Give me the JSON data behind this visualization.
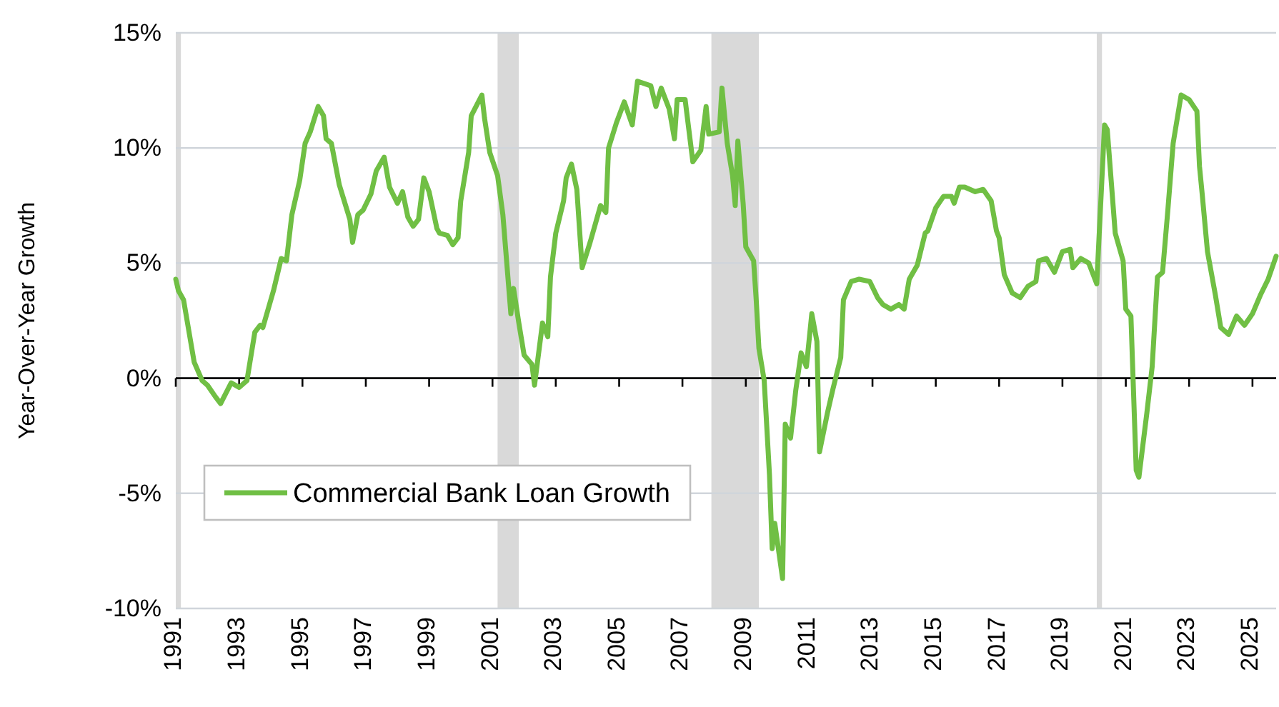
{
  "chart_data": {
    "type": "line",
    "ylabel": "Year-Over-Year Growth",
    "x": [
      "1991-01",
      "1991-02",
      "1991-04",
      "1991-08",
      "1991-11",
      "1992-01",
      "1992-04",
      "1992-06",
      "1992-10",
      "1993-01",
      "1993-04",
      "1993-07",
      "1993-09",
      "1993-10",
      "1994-02",
      "1994-05",
      "1994-07",
      "1994-09",
      "1994-12",
      "1995-02",
      "1995-04",
      "1995-07",
      "1995-09",
      "1995-10",
      "1995-12",
      "1996-03",
      "1996-07",
      "1996-08",
      "1996-10",
      "1996-12",
      "1997-03",
      "1997-05",
      "1997-08",
      "1997-10",
      "1998-01",
      "1998-03",
      "1998-05",
      "1998-07",
      "1998-09",
      "1998-11",
      "1999-01",
      "1999-04",
      "1999-05",
      "1999-08",
      "1999-10",
      "1999-12",
      "2000-01",
      "2000-04",
      "2000-05",
      "2000-09",
      "2000-10",
      "2000-12",
      "2001-03",
      "2001-05",
      "2001-08",
      "2001-09",
      "2001-11",
      "2002-01",
      "2002-04",
      "2002-05",
      "2002-08",
      "2002-10",
      "2002-11",
      "2003-01",
      "2003-04",
      "2003-05",
      "2003-07",
      "2003-09",
      "2003-11",
      "2004-02",
      "2004-06",
      "2004-08",
      "2004-09",
      "2004-12",
      "2005-03",
      "2005-06",
      "2005-08",
      "2006-01",
      "2006-03",
      "2006-05",
      "2006-08",
      "2006-10",
      "2006-11",
      "2007-02",
      "2007-05",
      "2007-08",
      "2007-10",
      "2007-11",
      "2008-03",
      "2008-04",
      "2008-06",
      "2008-08",
      "2008-09",
      "2008-10",
      "2008-12",
      "2009-01",
      "2009-04",
      "2009-05",
      "2009-06",
      "2009-08",
      "2009-10",
      "2009-11",
      "2009-12",
      "2010-03",
      "2010-04",
      "2010-06",
      "2010-08",
      "2010-10",
      "2010-12",
      "2011-02",
      "2011-04",
      "2011-05",
      "2011-08",
      "2011-10",
      "2012-01",
      "2012-02",
      "2012-05",
      "2012-08",
      "2012-12",
      "2013-03",
      "2013-05",
      "2013-08",
      "2013-11",
      "2014-01",
      "2014-03",
      "2014-06",
      "2014-09",
      "2014-10",
      "2015-01",
      "2015-04",
      "2015-07",
      "2015-08",
      "2015-10",
      "2015-12",
      "2016-04",
      "2016-07",
      "2016-10",
      "2016-12",
      "2017-01",
      "2017-03",
      "2017-06",
      "2017-09",
      "2017-12",
      "2018-03",
      "2018-04",
      "2018-07",
      "2018-10",
      "2019-01",
      "2019-04",
      "2019-05",
      "2019-08",
      "2019-11",
      "2020-02",
      "2020-05",
      "2020-06",
      "2020-09",
      "2020-12",
      "2021-01",
      "2021-03",
      "2021-05",
      "2021-06",
      "2021-09",
      "2021-11",
      "2022-01",
      "2022-03",
      "2022-05",
      "2022-07",
      "2022-10",
      "2023-01",
      "2023-04",
      "2023-05",
      "2023-06",
      "2023-08",
      "2023-11",
      "2024-01",
      "2024-04",
      "2024-07",
      "2024-10",
      "2025-01",
      "2025-04",
      "2025-07",
      "2025-10"
    ],
    "series": [
      {
        "name": "Commercial Bank Loan Growth",
        "color": "#70bf44",
        "values": [
          4.3,
          3.8,
          3.4,
          0.7,
          -0.1,
          -0.3,
          -0.8,
          -1.1,
          -0.2,
          -0.4,
          -0.1,
          2.0,
          2.3,
          2.2,
          3.8,
          5.2,
          5.1,
          7.1,
          8.6,
          10.2,
          10.7,
          11.8,
          11.4,
          10.4,
          10.2,
          8.4,
          6.9,
          5.9,
          7.1,
          7.3,
          8.0,
          9.0,
          9.6,
          8.3,
          7.6,
          8.1,
          7.0,
          6.6,
          6.9,
          8.7,
          8.1,
          6.5,
          6.3,
          6.2,
          5.8,
          6.1,
          7.7,
          9.8,
          11.4,
          12.3,
          11.3,
          9.8,
          8.8,
          7.1,
          2.8,
          3.9,
          2.4,
          1.0,
          0.6,
          -0.3,
          2.4,
          1.8,
          4.4,
          6.3,
          7.7,
          8.7,
          9.3,
          8.2,
          4.8,
          5.9,
          7.5,
          7.2,
          10.0,
          11.1,
          12.0,
          11.0,
          12.9,
          12.7,
          11.8,
          12.6,
          11.7,
          10.4,
          12.1,
          12.1,
          9.4,
          9.9,
          11.8,
          10.6,
          10.7,
          12.6,
          10.2,
          8.8,
          7.5,
          10.3,
          7.6,
          5.7,
          5.1,
          3.4,
          1.3,
          -0.1,
          -4.2,
          -7.4,
          -6.3,
          -8.7,
          -2.0,
          -2.6,
          -0.5,
          1.1,
          0.5,
          2.8,
          1.6,
          -3.2,
          -1.5,
          -0.5,
          0.9,
          3.4,
          4.2,
          4.3,
          4.2,
          3.5,
          3.2,
          3.0,
          3.2,
          3.0,
          4.3,
          4.9,
          6.3,
          6.4,
          7.4,
          7.9,
          7.9,
          7.6,
          8.3,
          8.3,
          8.1,
          8.2,
          7.7,
          6.4,
          6.1,
          4.5,
          3.7,
          3.5,
          4.0,
          4.2,
          5.1,
          5.2,
          4.6,
          5.5,
          5.6,
          4.8,
          5.2,
          5.0,
          4.1,
          11.0,
          10.8,
          6.3,
          5.1,
          3.0,
          2.7,
          -4.0,
          -4.3,
          -1.5,
          0.5,
          4.4,
          4.6,
          7.3,
          10.2,
          12.3,
          12.1,
          11.6,
          9.2,
          8.0,
          5.5,
          3.6,
          2.2,
          1.9,
          2.7,
          2.3,
          2.8,
          3.6,
          4.3,
          5.3
        ]
      }
    ],
    "xlim": [
      "1991-01",
      "2025-10"
    ],
    "xticks": [
      "1991",
      "1993",
      "1995",
      "1997",
      "1999",
      "2001",
      "2003",
      "2005",
      "2007",
      "2009",
      "2011",
      "2013",
      "2015",
      "2017",
      "2019",
      "2021",
      "2023",
      "2025"
    ],
    "ylim": [
      -10,
      15
    ],
    "yticks": [
      {
        "value": -10,
        "label": "-10%"
      },
      {
        "value": -5,
        "label": "-5%"
      },
      {
        "value": 0,
        "label": "0%"
      },
      {
        "value": 5,
        "label": "5%"
      },
      {
        "value": 10,
        "label": "10%"
      },
      {
        "value": 15,
        "label": "15%"
      }
    ],
    "bands": [
      {
        "axis": "x",
        "from": "1991-01",
        "to": "1991-03",
        "color": "#d9d9d9"
      },
      {
        "axis": "x",
        "from": "2001-03",
        "to": "2001-11",
        "color": "#d9d9d9"
      },
      {
        "axis": "x",
        "from": "2007-12",
        "to": "2009-06",
        "color": "#d9d9d9"
      },
      {
        "axis": "x",
        "from": "2020-02",
        "to": "2020-04",
        "color": "#d9d9d9"
      }
    ],
    "grid": "y",
    "legend": "bottom left",
    "line_style": "solid",
    "marker": "none"
  }
}
